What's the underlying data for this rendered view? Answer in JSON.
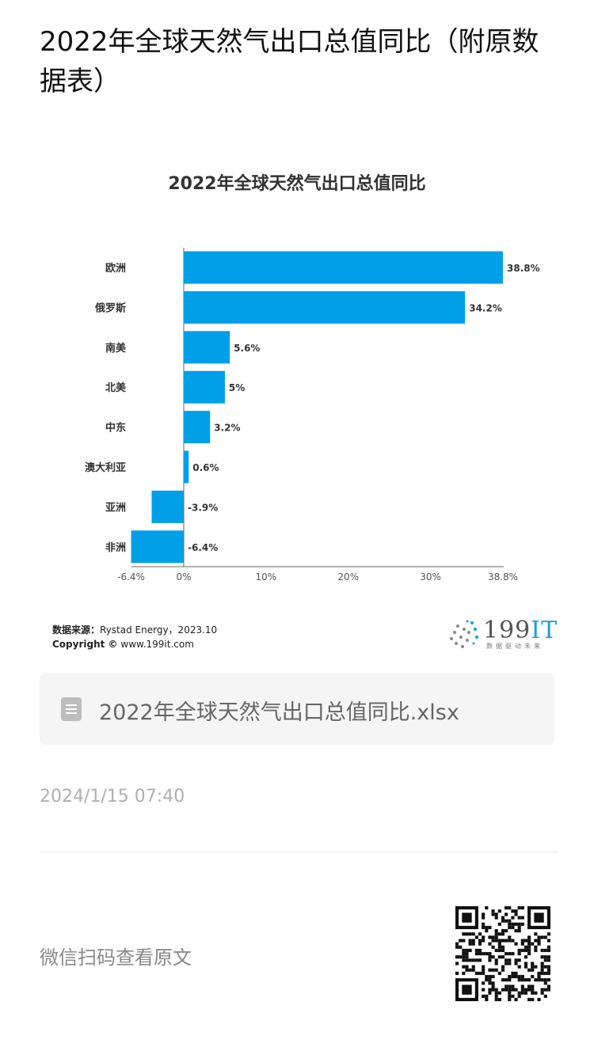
{
  "page": {
    "title": "2022年全球天然气出口总值同比（附原数据表）",
    "file_name": "2022年全球天然气出口总值同比.xlsx",
    "date": "2024/1/15 07:40",
    "scan_text": "微信扫码查看原文"
  },
  "source": {
    "label": "数据来源：",
    "text": "Rystad Energy，2023.10",
    "copyright_label": "Copyright ©",
    "copyright_text": "www.199it.com"
  },
  "logo": {
    "main": "199",
    "accent": "IT",
    "tagline": "数据驱动未来"
  },
  "colors": {
    "bar": "#009fe8",
    "text": "#333333",
    "axis": "#555555"
  },
  "chart_data": {
    "type": "bar",
    "orientation": "horizontal",
    "title": "2022年全球天然气出口总值同比",
    "categories": [
      "欧洲",
      "俄罗斯",
      "南美",
      "北美",
      "中东",
      "澳大利亚",
      "亚洲",
      "非洲"
    ],
    "values": [
      38.8,
      34.2,
      5.6,
      5,
      3.2,
      0.6,
      -3.9,
      -6.4
    ],
    "value_labels": [
      "38.8%",
      "34.2%",
      "5.6%",
      "5%",
      "3.2%",
      "0.6%",
      "-3.9%",
      "-6.4%"
    ],
    "x_ticks": [
      -6.4,
      0,
      10,
      20,
      30,
      38.8
    ],
    "x_tick_labels": [
      "-6.4%",
      "0%",
      "10%",
      "20%",
      "30%",
      "38.8%"
    ],
    "xlim": [
      -6.4,
      38.8
    ],
    "grid": false,
    "legend": "none"
  }
}
